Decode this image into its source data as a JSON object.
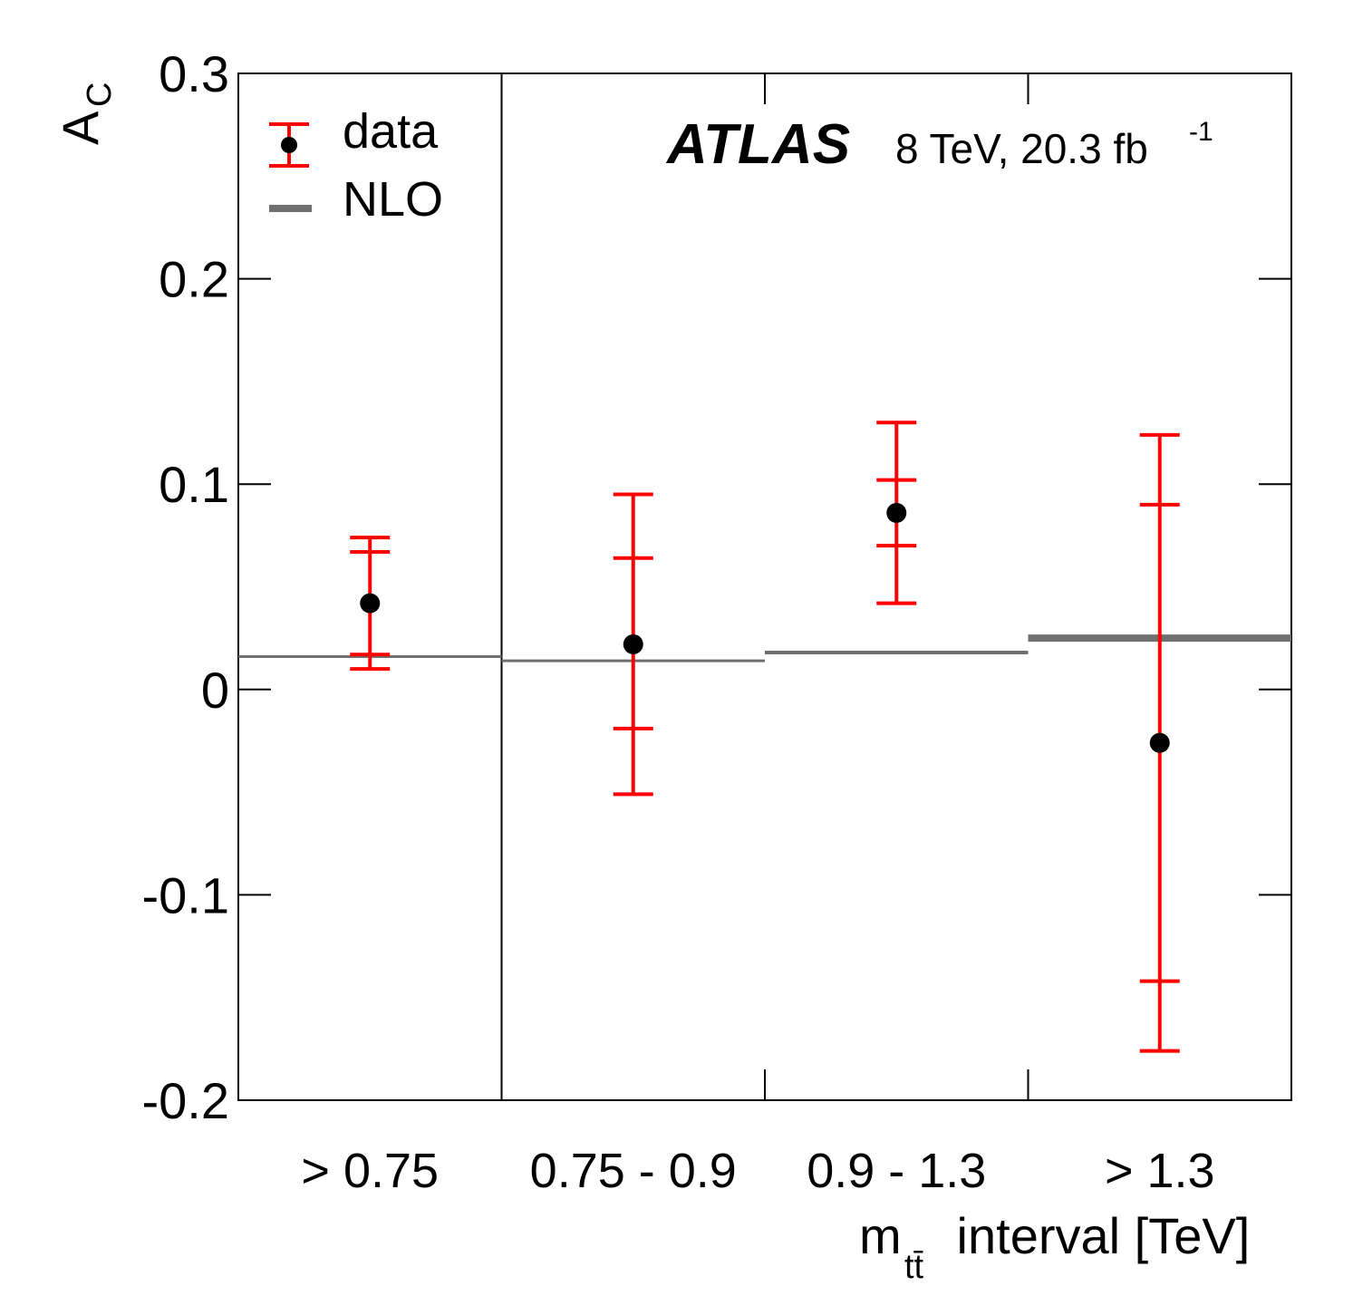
{
  "chart_data": {
    "type": "scatter",
    "ylabel_main": "A",
    "ylabel_sub": "C",
    "xlabel_main": "m",
    "xlabel_sub": "tt̄",
    "xlabel_rest": " interval [TeV]",
    "ylim": [
      -0.2,
      0.3
    ],
    "yticks": [
      {
        "value": 0.3,
        "label": "0.3"
      },
      {
        "value": 0.2,
        "label": "0.2"
      },
      {
        "value": 0.1,
        "label": "0.1"
      },
      {
        "value": 0.0,
        "label": "0"
      },
      {
        "value": -0.1,
        "label": "-0.1"
      },
      {
        "value": -0.2,
        "label": "-0.2"
      }
    ],
    "categories": [
      "> 0.75",
      "0.75 - 0.9",
      "0.9 - 1.3",
      "> 1.3"
    ],
    "series": [
      {
        "name": "data",
        "color": "#ff0000",
        "marker_color": "#000000",
        "points": [
          {
            "value": 0.042,
            "inner": [
              0.017,
              0.067
            ],
            "outer": [
              0.01,
              0.074
            ]
          },
          {
            "value": 0.022,
            "inner": [
              -0.019,
              0.064
            ],
            "outer": [
              -0.051,
              0.095
            ]
          },
          {
            "value": 0.086,
            "inner": [
              0.07,
              0.102
            ],
            "outer": [
              0.042,
              0.13
            ]
          },
          {
            "value": -0.026,
            "inner": [
              -0.142,
              0.09
            ],
            "outer": [
              -0.176,
              0.124
            ]
          }
        ]
      },
      {
        "name": "NLO",
        "color": "#707070",
        "values": [
          0.016,
          0.014,
          0.018,
          0.025
        ],
        "weights": [
          3,
          3,
          4,
          8
        ]
      }
    ],
    "legend": [
      {
        "key": "data",
        "label": "data"
      },
      {
        "key": "nlo",
        "label": "NLO"
      }
    ],
    "experiment": "ATLAS",
    "energy_main": "8 TeV, 20.3 fb",
    "energy_sup": "-1"
  }
}
